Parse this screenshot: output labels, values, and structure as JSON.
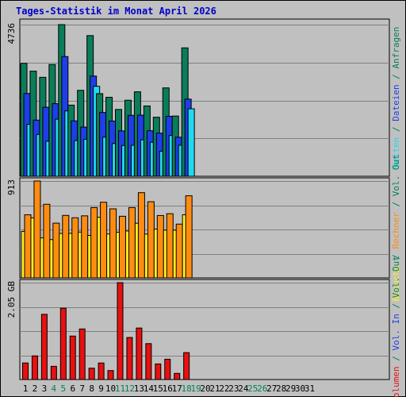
{
  "chart_data": {
    "type": "bar",
    "title": "Tages-Statistik im Monat April 2026",
    "days": [
      "1",
      "2",
      "3",
      "4",
      "5",
      "6",
      "7",
      "8",
      "9",
      "10",
      "11",
      "12",
      "13",
      "14",
      "15",
      "16",
      "17",
      "18",
      "19",
      "20",
      "21",
      "22",
      "23",
      "24",
      "25",
      "26",
      "27",
      "28",
      "29",
      "30",
      "31"
    ],
    "weekend_days": [
      "4",
      "5",
      "11",
      "12",
      "18",
      "19",
      "25",
      "26"
    ],
    "colors": {
      "background": "#c0c0c0",
      "page": "#ffffff",
      "title": "#0000cc",
      "weekday_label": "#000000",
      "weekend_label": "#008060",
      "anfragen": "#0a7d5a",
      "dateien": "#1e3ee8",
      "seiten": "#22d8f0",
      "besuche": "#ffee22",
      "rechner": "#ff8c10",
      "volumen": "#e81010"
    },
    "panels": [
      {
        "name": "requests",
        "ymax_label": "4736",
        "ymax": 4736,
        "right_label": [
          {
            "text": "Seiten",
            "color": "#22d8f0"
          },
          {
            "text": " / ",
            "color": "#008060"
          },
          {
            "text": "Dateien",
            "color": "#1e3ee8"
          },
          {
            "text": " / ",
            "color": "#008060"
          },
          {
            "text": "Anfragen",
            "color": "#0a7d5a"
          }
        ],
        "series": [
          {
            "name": "Anfragen",
            "values": [
              3527,
              3283,
              3091,
              3490,
              4736,
              2222,
              2684,
              4393,
              2580,
              2467,
              2087,
              2375,
              2638,
              2196,
              1844,
              2760,
              1881,
              4010,
              0
            ]
          },
          {
            "name": "Dateien",
            "values": [
              2585,
              1753,
              2157,
              2267,
              3739,
              1730,
              1535,
              3130,
              1993,
              1725,
              1417,
              1902,
              1909,
              1422,
              1347,
              1873,
              1220,
              2409,
              0
            ]
          },
          {
            "name": "Seiten",
            "values": [
              1622,
              1306,
              1096,
              1782,
              2041,
              1116,
              1155,
              2809,
              1220,
              1021,
              960,
              968,
              1138,
              1062,
              778,
              1273,
              970,
              2107,
              0
            ]
          }
        ]
      },
      {
        "name": "visits",
        "ymax_label": "913",
        "ymax": 913,
        "right_label": [
          {
            "text": "Besuche",
            "color": "#ffee22"
          },
          {
            "text": " / ",
            "color": "#008060"
          },
          {
            "text": "Rechner",
            "color": "#ff8c10"
          },
          {
            "text": " / ",
            "color": "#008060"
          },
          {
            "text": "Vol. Out",
            "color": "#008060"
          }
        ],
        "series": [
          {
            "name": "Besuche",
            "values": [
              438,
              566,
              377,
              361,
              419,
              420,
              432,
              400,
              571,
              414,
              431,
              442,
              515,
              413,
              460,
              451,
              450,
              595,
              0
            ]
          },
          {
            "name": "Rechner",
            "values": [
              595,
              913,
              694,
              516,
              589,
              567,
              585,
              663,
              713,
              651,
              581,
              663,
              803,
              718,
              588,
              605,
              507,
              774,
              0
            ]
          }
        ]
      },
      {
        "name": "volume",
        "ymax_label": "2.05 GB",
        "ymax": 2.05,
        "right_label": [
          {
            "text": "Volumen",
            "color": "#e81010"
          },
          {
            "text": " / ",
            "color": "#008060"
          },
          {
            "text": "Vol. In",
            "color": "#1e3ee8"
          },
          {
            "text": " / ",
            "color": "#008060"
          },
          {
            "text": "Vol. Out",
            "color": "#008060"
          }
        ],
        "series": [
          {
            "name": "Volumen",
            "values": [
              0.35,
              0.5,
              1.38,
              0.28,
              1.51,
              0.92,
              1.07,
              0.24,
              0.35,
              0.19,
              2.05,
              0.89,
              1.09,
              0.76,
              0.33,
              0.43,
              0.13,
              0.57,
              0
            ]
          }
        ]
      }
    ]
  }
}
